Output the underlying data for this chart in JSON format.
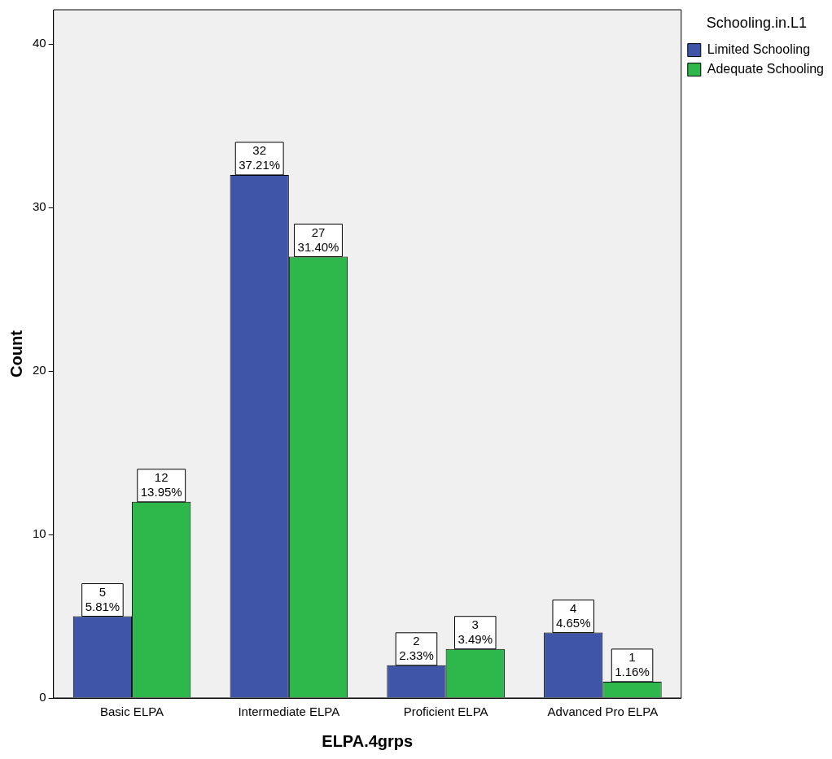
{
  "chart_data": {
    "type": "bar",
    "xlabel": "ELPA.4grps",
    "ylabel": "Count",
    "legend_title": "Schooling.in.L1",
    "legend": "top right",
    "grid": false,
    "categories": [
      "Basic ELPA",
      "Intermediate ELPA",
      "Proficient ELPA",
      "Advanced Pro ELPA"
    ],
    "ylim": [
      0,
      42.1
    ],
    "yticks": [
      0,
      10,
      20,
      30,
      40
    ],
    "series": [
      {
        "name": "Limited Schooling",
        "color": "#3f56a8",
        "values": [
          5,
          32,
          2,
          4
        ],
        "value_labels": [
          "5\n5.81%",
          "32\n37.21%",
          "2\n2.33%",
          "4\n4.65%"
        ]
      },
      {
        "name": "Adequate Schooling",
        "color": "#2eb84b",
        "values": [
          12,
          27,
          3,
          1
        ],
        "value_labels": [
          "12\n13.95%",
          "27\n31.40%",
          "3\n3.49%",
          "1\n1.16%"
        ]
      }
    ]
  }
}
